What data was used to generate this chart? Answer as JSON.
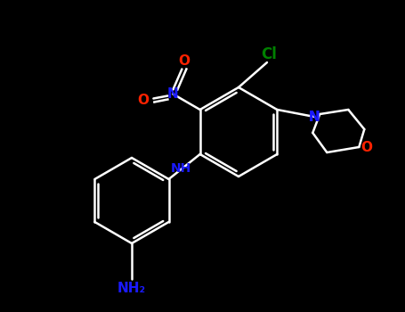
{
  "bg_color": "#000000",
  "bond_color": "#ffffff",
  "atom_colors": {
    "N": "#1a1aff",
    "O": "#ff2200",
    "Cl": "#008000",
    "NH": "#1a1aff",
    "NH2": "#1a1aff"
  },
  "figsize": [
    4.55,
    3.5
  ],
  "dpi": 100,
  "lw": 1.8
}
